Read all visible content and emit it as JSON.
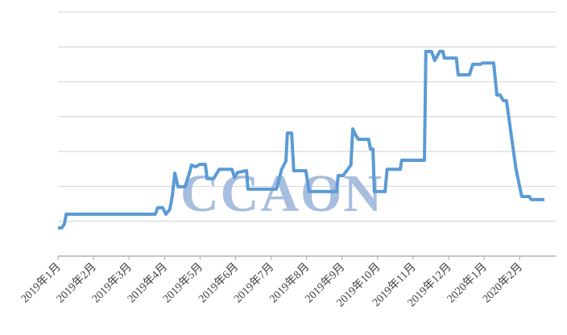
{
  "chart_data": {
    "type": "line",
    "watermark": "CCAON",
    "xlim": [
      0,
      13.7
    ],
    "xticks": [
      {
        "value": 0,
        "label": "2019年1月"
      },
      {
        "value": 1,
        "label": "2019年2月"
      },
      {
        "value": 2,
        "label": "2019年3月"
      },
      {
        "value": 3,
        "label": "2019年4月"
      },
      {
        "value": 4,
        "label": "2019年5月"
      },
      {
        "value": 5,
        "label": "2019年6月"
      },
      {
        "value": 6,
        "label": "2019年7月"
      },
      {
        "value": 7,
        "label": "2019年8月"
      },
      {
        "value": 8,
        "label": "2019年9月"
      },
      {
        "value": 9,
        "label": "2019年10月"
      },
      {
        "value": 10,
        "label": "2019年11月"
      },
      {
        "value": 11,
        "label": "2019年12月"
      },
      {
        "value": 12,
        "label": "2020年1月"
      },
      {
        "value": 13,
        "label": "2020年2月"
      }
    ],
    "ylim": [
      0,
      7
    ],
    "yticks": [
      0,
      1,
      2,
      3,
      4,
      5,
      6,
      7
    ],
    "grid": true,
    "series": [
      {
        "color": "#5b9bd5",
        "x": [
          0,
          0.11,
          0.18,
          0.23,
          2.74,
          2.81,
          2.95,
          3.04,
          3.15,
          3.22,
          3.29,
          3.38,
          3.58,
          3.72,
          3.76,
          3.88,
          3.99,
          4.15,
          4.2,
          4.38,
          4.54,
          4.9,
          4.97,
          5.06,
          5.31,
          5.35,
          6.15,
          6.3,
          6.42,
          6.46,
          6.58,
          6.64,
          6.98,
          7.07,
          7.85,
          7.89,
          8.03,
          8.16,
          8.25,
          8.3,
          8.39,
          8.46,
          8.75,
          8.8,
          8.87,
          8.91,
          9.21,
          9.27,
          9.64,
          9.68,
          10.32,
          10.36,
          10.52,
          10.61,
          10.75,
          10.84,
          10.88,
          11.22,
          11.27,
          11.59,
          11.68,
          11.9,
          11.95,
          12.27,
          12.36,
          12.45,
          12.54,
          12.63,
          12.9,
          13.06,
          13.27,
          13.33,
          13.7
        ],
        "values": [
          0.81,
          0.81,
          0.92,
          1.2,
          1.2,
          1.39,
          1.39,
          1.2,
          1.34,
          1.73,
          2.38,
          1.99,
          1.99,
          2.45,
          2.61,
          2.56,
          2.63,
          2.63,
          2.22,
          2.22,
          2.49,
          2.49,
          2.26,
          2.4,
          2.45,
          1.92,
          1.92,
          2.49,
          2.73,
          3.53,
          3.53,
          2.45,
          2.45,
          1.85,
          1.85,
          2.31,
          2.31,
          2.49,
          2.61,
          3.65,
          3.46,
          3.35,
          3.35,
          3.07,
          3.07,
          1.85,
          1.85,
          2.49,
          2.49,
          2.75,
          2.75,
          5.87,
          5.87,
          5.61,
          5.87,
          5.87,
          5.68,
          5.68,
          5.2,
          5.2,
          5.5,
          5.5,
          5.54,
          5.54,
          4.62,
          4.62,
          4.46,
          4.46,
          2.49,
          1.71,
          1.71,
          1.62,
          1.62
        ]
      }
    ]
  }
}
